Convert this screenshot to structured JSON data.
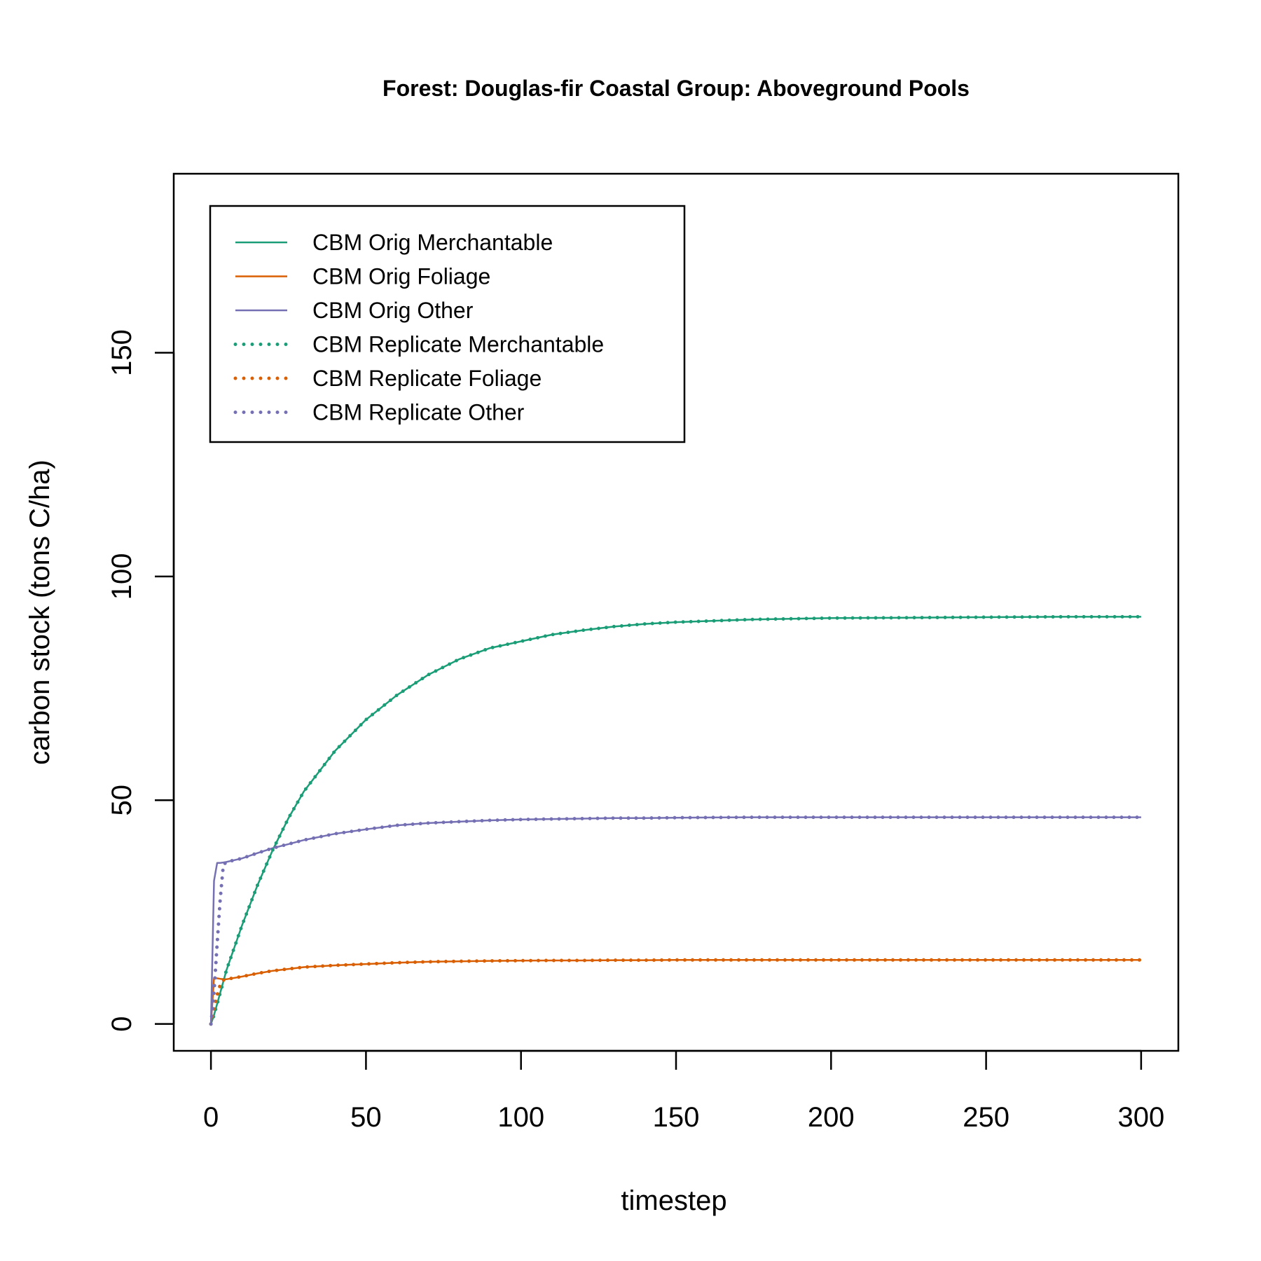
{
  "chart_data": {
    "type": "line",
    "title": "Forest: Douglas-fir Coastal Group: Aboveground Pools",
    "xlabel": "timestep",
    "ylabel": "carbon stock (tons C/ha)",
    "xlim": [
      -12,
      312
    ],
    "ylim": [
      -6,
      190
    ],
    "x_ticks": [
      0,
      50,
      100,
      150,
      200,
      250,
      300
    ],
    "y_ticks": [
      0,
      50,
      100,
      150
    ],
    "grid": false,
    "legend_position": "top-left",
    "colors": {
      "merchantable": "#1b9e77",
      "foliage": "#d95f02",
      "other": "#7570b3"
    },
    "x": [
      0,
      1,
      2,
      3,
      4,
      5,
      10,
      15,
      20,
      25,
      30,
      40,
      50,
      60,
      70,
      80,
      90,
      100,
      110,
      120,
      130,
      140,
      150,
      175,
      200,
      225,
      250,
      275,
      300
    ],
    "series": [
      {
        "name": "CBM Orig Merchantable",
        "style": "solid",
        "color": "#1b9e77",
        "values": [
          0,
          2,
          4.5,
          7,
          9.5,
          12,
          22,
          31,
          39,
          46,
          52,
          61,
          68,
          73.5,
          78,
          81.5,
          84,
          85.5,
          87,
          88,
          88.8,
          89.4,
          89.8,
          90.4,
          90.7,
          90.8,
          90.9,
          91,
          91
        ]
      },
      {
        "name": "CBM Orig Foliage",
        "style": "solid",
        "color": "#d95f02",
        "values": [
          0,
          10.3,
          10.2,
          10.1,
          10.0,
          10.0,
          10.6,
          11.3,
          11.9,
          12.3,
          12.7,
          13.1,
          13.4,
          13.7,
          13.9,
          14.0,
          14.1,
          14.15,
          14.2,
          14.2,
          14.25,
          14.25,
          14.3,
          14.3,
          14.3,
          14.3,
          14.3,
          14.3,
          14.3
        ]
      },
      {
        "name": "CBM Orig Other",
        "style": "solid",
        "color": "#7570b3",
        "values": [
          0,
          32,
          36,
          36,
          36.1,
          36.2,
          37,
          38.2,
          39.3,
          40.2,
          41.1,
          42.5,
          43.5,
          44.4,
          44.9,
          45.2,
          45.5,
          45.7,
          45.8,
          45.9,
          46.0,
          46.0,
          46.1,
          46.2,
          46.2,
          46.2,
          46.2,
          46.2,
          46.2
        ]
      },
      {
        "name": "CBM Replicate Merchantable",
        "style": "dotted",
        "color": "#1b9e77",
        "values": [
          0,
          2,
          4.5,
          7,
          9.5,
          12,
          22,
          31,
          39,
          46,
          52,
          61,
          68,
          73.5,
          78,
          81.5,
          84,
          85.5,
          87,
          88,
          88.8,
          89.4,
          89.8,
          90.4,
          90.7,
          90.8,
          90.9,
          91,
          91
        ]
      },
      {
        "name": "CBM Replicate Foliage",
        "style": "dotted",
        "color": "#d95f02",
        "values": [
          0,
          3.5,
          6.5,
          8.8,
          9.8,
          10.0,
          10.6,
          11.3,
          11.9,
          12.3,
          12.7,
          13.1,
          13.4,
          13.7,
          13.9,
          14.0,
          14.1,
          14.15,
          14.2,
          14.2,
          14.25,
          14.25,
          14.3,
          14.3,
          14.3,
          14.3,
          14.3,
          14.3,
          14.3
        ]
      },
      {
        "name": "CBM Replicate Other",
        "style": "dotted",
        "color": "#7570b3",
        "values": [
          0,
          7,
          18,
          28,
          35.5,
          36.2,
          37,
          38.2,
          39.3,
          40.2,
          41.1,
          42.5,
          43.5,
          44.4,
          44.9,
          45.2,
          45.5,
          45.7,
          45.8,
          45.9,
          46.0,
          46.0,
          46.1,
          46.2,
          46.2,
          46.2,
          46.2,
          46.2,
          46.2
        ]
      }
    ]
  }
}
